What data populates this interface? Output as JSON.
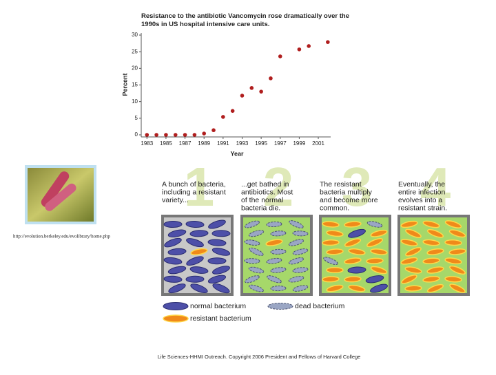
{
  "chart_data": {
    "type": "scatter",
    "title": "Resistance to the antibiotic Vancomycin rose dramatically over the 1990s in US hospital intensive care units.",
    "x_label": "Year",
    "y_label": "Percent",
    "x": [
      1983,
      1984,
      1985,
      1986,
      1987,
      1988,
      1989,
      1990,
      1991,
      1992,
      1993,
      1994,
      1995,
      1996,
      1997,
      1999,
      2000,
      2002
    ],
    "values": [
      0,
      0,
      0,
      0,
      0,
      0,
      0.4,
      1.4,
      5.4,
      7.2,
      11.8,
      14.1,
      13,
      17,
      23.6,
      25.7,
      26.7,
      27.9
    ],
    "color": "#b01e1e",
    "xlim": [
      1982.4,
      2002.3
    ],
    "ylim": [
      0,
      30
    ],
    "xticks": [
      1983,
      1985,
      1987,
      1989,
      1991,
      1993,
      1995,
      1997,
      1999,
      2001
    ],
    "yticks": [
      0,
      5,
      10,
      15,
      20,
      25,
      30
    ]
  },
  "source_url": "http://evolution.berkeley.edu/evolibrary/home.php",
  "panels": [
    {
      "number": "1",
      "caption": [
        "A bunch of bacteria,",
        "including a resistant",
        "variety..."
      ]
    },
    {
      "number": "2",
      "caption": [
        "...get bathed in",
        "antibiotics. Most",
        "of the normal",
        "bacteria die."
      ]
    },
    {
      "number": "3",
      "caption": [
        "The resistant",
        "bacteria multiply",
        "and become more",
        "common."
      ]
    },
    {
      "number": "4",
      "caption": [
        "Eventually, the",
        "entire infection",
        "evolves into a",
        "resistant strain."
      ]
    }
  ],
  "legend": {
    "normal": "normal bacterium",
    "dead": "dead bacterium",
    "resistant": "resistant bacterium"
  },
  "footer": "Life Sciences-HHMI Outreach. Copyright 2006 President and Fellows of Harvard College"
}
